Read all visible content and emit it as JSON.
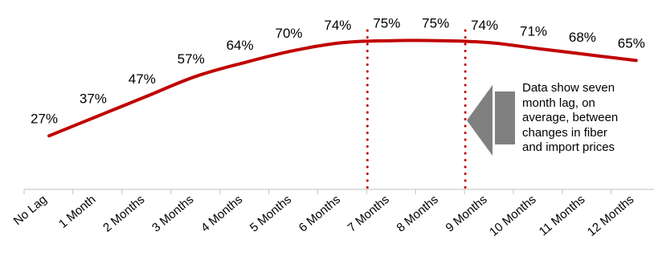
{
  "chart_data": {
    "type": "line",
    "title": "",
    "xlabel": "",
    "ylabel": "",
    "categories": [
      "No Lag",
      "1 Month",
      "2 Months",
      "3 Months",
      "4 Months",
      "5 Months",
      "6 Months",
      "7 Months",
      "8 Months",
      "9 Months",
      "10 Months",
      "11 Months",
      "12 Months"
    ],
    "series": [
      {
        "values": [
          27,
          37,
          47,
          57,
          64,
          70,
          74,
          75,
          75,
          74,
          71,
          68,
          65
        ],
        "labels": [
          "27%",
          "37%",
          "47%",
          "57%",
          "64%",
          "70%",
          "74%",
          "75%",
          "75%",
          "74%",
          "71%",
          "68%",
          "65%"
        ]
      }
    ],
    "ylim": [
      0,
      85
    ],
    "grid": false,
    "line_color": "#C00000",
    "marker_line_color": "#C00000",
    "marker_lines_at": [
      "7 Months",
      "9 Months"
    ],
    "annotation": {
      "lines": [
        "Data show seven",
        "month lag, on",
        "average, between",
        "changes in fiber",
        "and import prices"
      ],
      "arrow_color": "#808080"
    }
  }
}
